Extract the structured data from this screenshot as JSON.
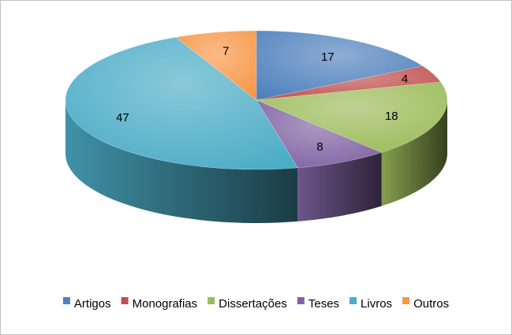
{
  "chart_data": {
    "type": "pie",
    "three_d": true,
    "title": "",
    "categories": [
      "Artigos",
      "Monografias",
      "Dissertações",
      "Teses",
      "Livros",
      "Outros"
    ],
    "values": [
      17,
      4,
      18,
      8,
      47,
      7
    ],
    "data_labels": [
      "17",
      "4",
      "18",
      "8",
      "47",
      "7"
    ],
    "colors": [
      "#4f81bd",
      "#c0504d",
      "#9bbb59",
      "#8064a2",
      "#4bacc6",
      "#f79646"
    ],
    "legend_position": "bottom",
    "start_angle": "12 o'clock",
    "direction": "clockwise"
  }
}
